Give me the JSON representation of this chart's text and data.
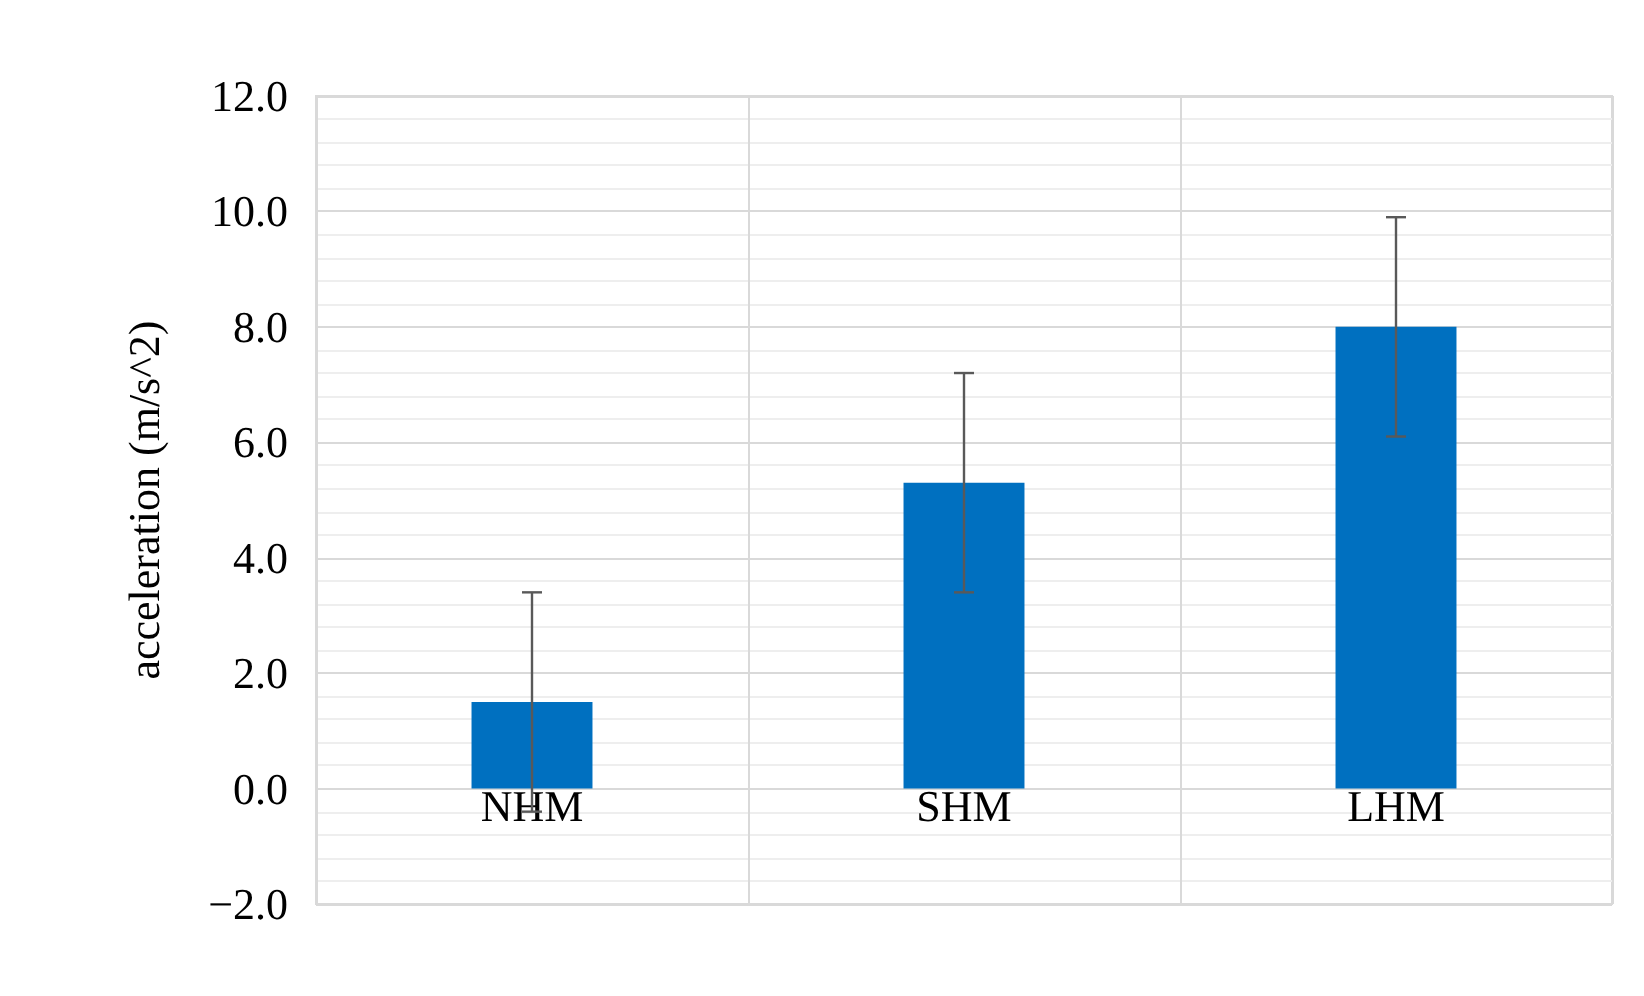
{
  "chart_data": {
    "type": "bar",
    "ylabel": "acceleration (m/s^2)",
    "categories": [
      "NHM",
      "SHM",
      "LHM"
    ],
    "values": [
      1.5,
      5.3,
      8.0
    ],
    "color": "#0070c0",
    "errors": [
      1.9,
      1.9,
      1.9
    ],
    "ylim": [
      -2,
      12
    ],
    "yticks": [
      {
        "value": -2,
        "label": "−2.0"
      },
      {
        "value": 0,
        "label": "0.0"
      },
      {
        "value": 2,
        "label": "2.0"
      },
      {
        "value": 4,
        "label": "4.0"
      },
      {
        "value": 6,
        "label": "6.0"
      },
      {
        "value": 8,
        "label": "8.0"
      },
      {
        "value": 10,
        "label": "10.0"
      },
      {
        "value": 12,
        "label": "12.0"
      }
    ],
    "grid": true
  }
}
